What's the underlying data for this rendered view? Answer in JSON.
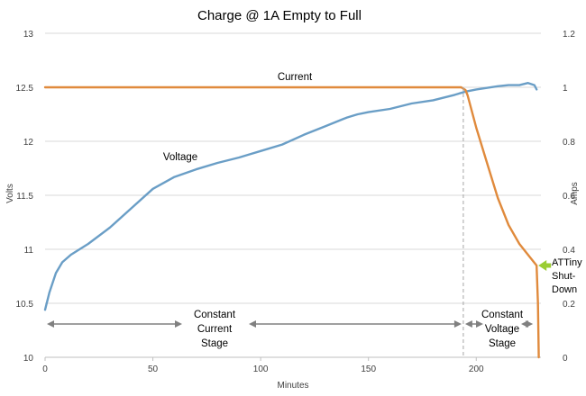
{
  "chart_data": {
    "type": "line",
    "title": "Charge @ 1A Empty to Full",
    "xlabel": "Minutes",
    "ylabel_left": "Volts",
    "ylabel_right": "Amps",
    "xlim": [
      0,
      230
    ],
    "ylim_left": [
      10,
      13
    ],
    "ylim_right": [
      0,
      1.2
    ],
    "x_ticks": [
      0,
      50,
      100,
      150,
      200
    ],
    "y_left_ticks": [
      10,
      10.5,
      11,
      11.5,
      12,
      12.5,
      13
    ],
    "y_right_ticks": [
      0,
      0.2,
      0.4,
      0.6,
      0.8,
      1,
      1.2
    ],
    "x_tick_labels": [
      "0",
      "50",
      "100",
      "150",
      "200"
    ],
    "y_left_tick_labels": [
      "10",
      "10.5",
      "11",
      "11.5",
      "12",
      "12.5",
      "13"
    ],
    "y_right_tick_labels": [
      "0",
      "0.2",
      "0.4",
      "0.6",
      "0.8",
      "1",
      "1.2"
    ],
    "grid": true,
    "colors": {
      "voltage": "#6a9ec6",
      "current": "#e08a3c",
      "marker": "#9acd32",
      "grid": "#d9d9d9",
      "arrow": "#808080"
    },
    "series": [
      {
        "name": "Voltage",
        "axis": "left",
        "x": [
          0,
          2,
          5,
          8,
          12,
          20,
          30,
          40,
          50,
          60,
          70,
          80,
          90,
          95,
          100,
          110,
          120,
          130,
          140,
          145,
          150,
          160,
          170,
          180,
          190,
          195,
          200,
          210,
          215,
          220,
          224,
          227,
          228
        ],
        "y": [
          10.44,
          10.6,
          10.78,
          10.88,
          10.95,
          11.05,
          11.2,
          11.38,
          11.56,
          11.67,
          11.74,
          11.8,
          11.85,
          11.88,
          11.91,
          11.97,
          12.06,
          12.14,
          12.22,
          12.25,
          12.27,
          12.3,
          12.35,
          12.38,
          12.43,
          12.46,
          12.48,
          12.51,
          12.52,
          12.52,
          12.54,
          12.52,
          12.48
        ]
      },
      {
        "name": "Current",
        "axis": "right",
        "x": [
          0,
          30,
          100,
          180,
          193,
          195,
          196,
          200,
          205,
          210,
          215,
          220,
          225,
          227,
          228,
          228.6,
          229
        ],
        "y": [
          1.0,
          1.0,
          1.0,
          1.0,
          1.0,
          0.99,
          0.97,
          0.85,
          0.72,
          0.59,
          0.49,
          0.42,
          0.37,
          0.35,
          0.34,
          0.2,
          0.0
        ]
      }
    ],
    "annotations": {
      "current_label": "Current",
      "voltage_label": "Voltage",
      "cc_stage_line1": "Constant",
      "cc_stage_line2": "Current",
      "cc_stage_line3": "Stage",
      "cv_stage_line1": "Constant",
      "cv_stage_line2": "Voltage",
      "cv_stage_line3": "Stage",
      "attiny_line1": "ATTiny",
      "attiny_line2": "Shut-",
      "attiny_line3": "Down"
    },
    "stage_boundary_minutes": 194,
    "shutdown_point": {
      "x": 228,
      "amps": 0.34
    }
  }
}
